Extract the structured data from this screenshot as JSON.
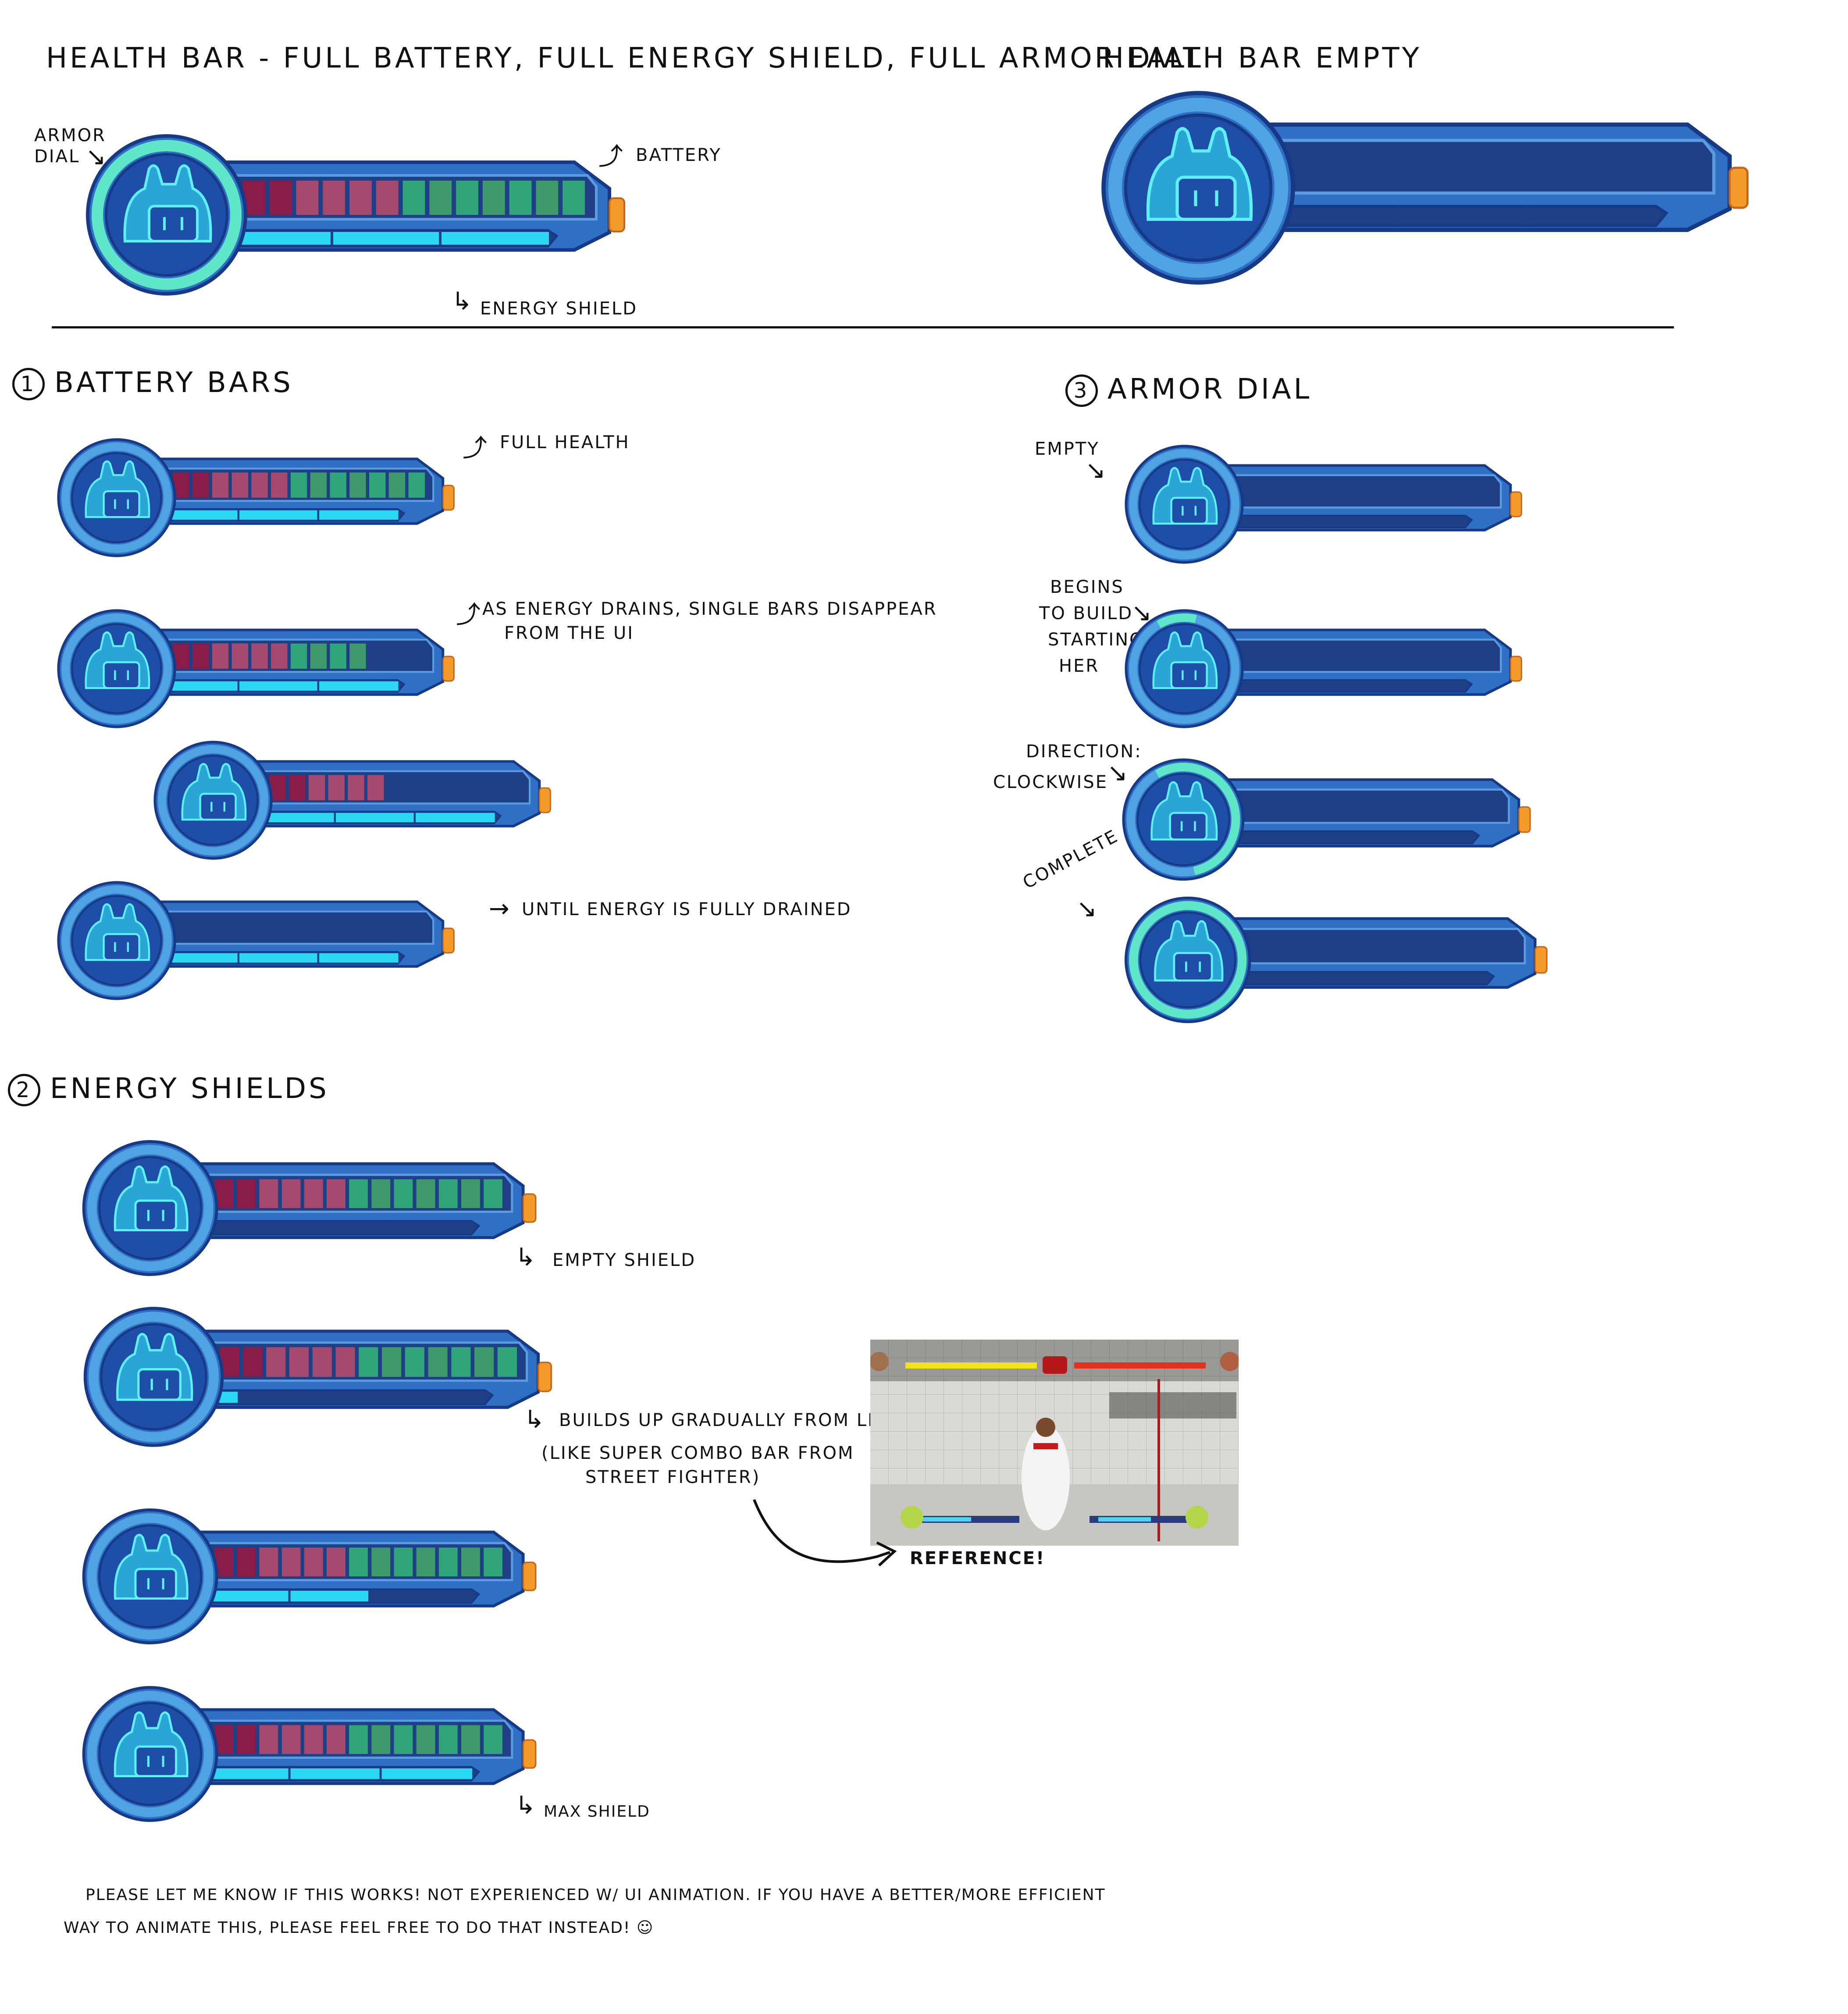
{
  "title_full": "Health Bar - Full Battery, Full Energy Shield, Full Armor Dial",
  "title_empty": "Health Bar Empty",
  "callouts": {
    "armor_dial": "Armor Dial",
    "battery": "Battery",
    "energy_shield": "Energy Shield"
  },
  "sections": {
    "battery": {
      "number": "1",
      "title": "Battery Bars"
    },
    "shields": {
      "number": "2",
      "title": "Energy Shields"
    },
    "armor": {
      "number": "3",
      "title": "Armor Dial"
    }
  },
  "notes": {
    "full_health": "Full Health",
    "drain_1": "As energy drains, single bars disappear",
    "drain_2": "from the UI",
    "fully_drained": "Until energy is fully drained",
    "empty": "Empty",
    "begins_1": "Begins",
    "begins_2": "To build",
    "begins_3": "starting",
    "begins_4": "her",
    "direction": "Direction:",
    "clockwise": "Clockwise",
    "complete": "Complete",
    "empty_shield": "Empty shield",
    "builds_1": "Builds up gradually from left to right",
    "builds_2": "(Like super combo bar from",
    "builds_3": "Street Fighter)",
    "reference": "Reference!",
    "max_shield": "Max shield",
    "footer_1": "Please let me know if this works! Not experienced w/ UI animation. If you have a better/more efficient",
    "footer_2": "way to animate this, please feel free to do that instead! ☺"
  },
  "health_bars": {
    "top_full": {
      "battery_cells": 13,
      "shield_level": 1.0,
      "armor_level": 1.0
    },
    "top_empty": {
      "battery_cells": 0,
      "shield_level": 0.0,
      "armor_level": 0.0
    },
    "battery_1": {
      "battery_cells": 13,
      "shield_level": 1.0,
      "armor_level": 0.0
    },
    "battery_2": {
      "battery_cells": 10,
      "shield_level": 1.0,
      "armor_level": 0.0
    },
    "battery_3": {
      "battery_cells": 6,
      "shield_level": 1.0,
      "armor_level": 0.0
    },
    "battery_4": {
      "battery_cells": 0,
      "shield_level": 1.0,
      "armor_level": 0.0
    },
    "armor_1": {
      "battery_cells": 0,
      "shield_level": 0.0,
      "armor_level": 0.0
    },
    "armor_2": {
      "battery_cells": 0,
      "shield_level": 0.0,
      "armor_level": 0.12
    },
    "armor_3": {
      "battery_cells": 0,
      "shield_level": 0.0,
      "armor_level": 0.55
    },
    "armor_4": {
      "battery_cells": 0,
      "shield_level": 0.0,
      "armor_level": 1.0
    },
    "shield_1": {
      "battery_cells": 13,
      "shield_level": 0.0,
      "armor_level": 0.0
    },
    "shield_2": {
      "battery_cells": 13,
      "shield_level": 0.12,
      "armor_level": 0.0
    },
    "shield_3": {
      "battery_cells": 13,
      "shield_level": 0.62,
      "armor_level": 0.0
    },
    "shield_4": {
      "battery_cells": 13,
      "shield_level": 1.0,
      "armor_level": 0.0
    }
  },
  "colors": {
    "frame": "#2f6fc4",
    "frame_dark": "#173a86",
    "dial_track": "#4fa3e3",
    "dial_inner": "#1e4ea8",
    "robot_fill": "#2aa5d6",
    "robot_line": "#5ff0f5",
    "panel": "#1f3f86",
    "battery_red": "#8a1c4a",
    "battery_pink": "#a54a6e",
    "battery_green": "#3e9a6a",
    "battery_teal": "#30a579",
    "shield": "#2ad8f5",
    "cap": "#f39a2a",
    "armor_glow": "#5fe6c8"
  }
}
